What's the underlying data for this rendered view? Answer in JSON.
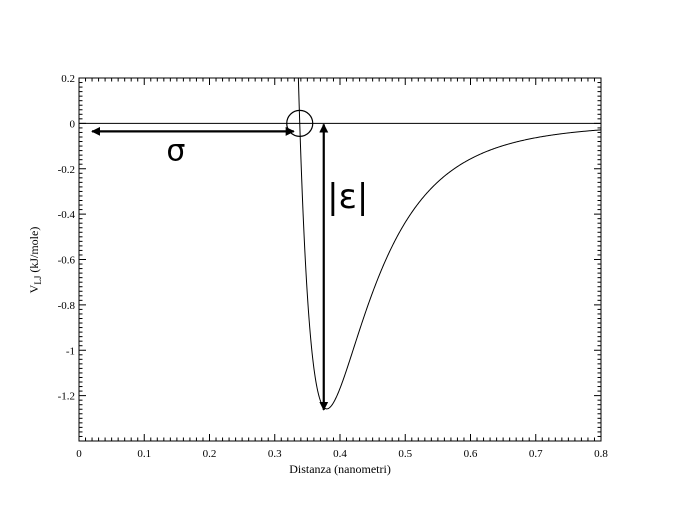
{
  "chart_data": {
    "type": "line",
    "title": "",
    "xlabel": "Distanza (nanometri)",
    "ylabel_main": "V",
    "ylabel_sub": "LJ",
    "ylabel_unit": " (kJ/mole)",
    "xlim": [
      0,
      0.8
    ],
    "ylim": [
      -1.4,
      0.2
    ],
    "x_ticks": [
      0,
      0.1,
      0.2,
      0.3,
      0.4,
      0.5,
      0.6,
      0.7,
      0.8
    ],
    "x_tick_labels": [
      "0",
      "0.1",
      "0.2",
      "0.3",
      "0.4",
      "0.5",
      "0.6",
      "0.7",
      "0.8"
    ],
    "y_ticks": [
      0.2,
      0,
      -0.2,
      -0.4,
      -0.6,
      -0.8,
      -1,
      -1.2
    ],
    "y_tick_labels": [
      "0.2",
      "0",
      "-0.2",
      "-0.4",
      "-0.6",
      "-0.8",
      "-1",
      "-1.2"
    ],
    "grid": false,
    "legend": "none",
    "series": [
      {
        "function": "lennard-jones",
        "sigma": 0.3383,
        "epsilon": 1.2585,
        "x_range": [
          0.33,
          0.8
        ],
        "x": [
          0.33,
          0.34,
          0.35,
          0.36,
          0.37,
          0.38,
          0.39,
          0.4,
          0.42,
          0.45,
          0.5,
          0.55,
          0.6,
          0.65,
          0.7,
          0.75,
          0.8
        ],
        "y": [
          0.66,
          -0.11,
          -0.65,
          -1.01,
          -1.21,
          -1.26,
          -1.22,
          -1.13,
          -0.89,
          -0.59,
          -0.31,
          -0.17,
          -0.1,
          -0.062,
          -0.04,
          -0.027,
          -0.019
        ]
      }
    ],
    "reference_lines": [
      {
        "type": "horizontal",
        "y": 0
      }
    ],
    "annotations": [
      {
        "label": "σ",
        "kind": "double-arrow-horizontal",
        "from": [
          0.02,
          0
        ],
        "to": [
          0.3383,
          0
        ]
      },
      {
        "label": "|ε|",
        "kind": "double-arrow-vertical",
        "x": 0.3797,
        "from": 0,
        "to": -1.2585
      },
      {
        "kind": "circle-marker",
        "x": 0.3383,
        "y": 0
      }
    ]
  }
}
